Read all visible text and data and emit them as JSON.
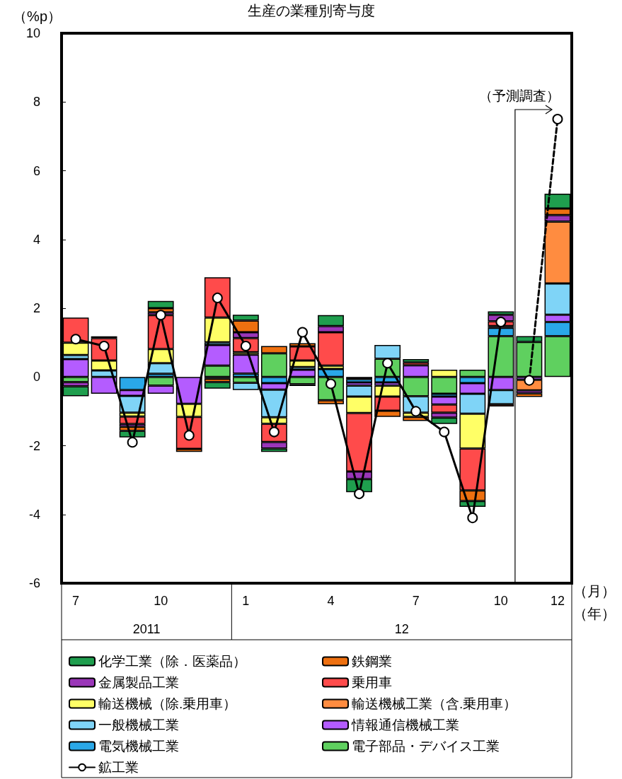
{
  "chart_data": {
    "type": "bar",
    "title": "生産の業種別寄与度",
    "xlabel": "（月）",
    "ylabel": "（%p）",
    "annotations": [
      "（予測調査）",
      "（年）",
      "2011",
      "12"
    ],
    "categories": [
      "7",
      null,
      null,
      "10",
      null,
      null,
      "1",
      null,
      null,
      "4",
      null,
      null,
      "7",
      null,
      null,
      "10",
      null,
      "12"
    ],
    "stacked": true,
    "ylim": [
      -6,
      10
    ],
    "yticks": [
      -6,
      -4,
      -2,
      0,
      2,
      4,
      6,
      8,
      10
    ],
    "legend": "bottom",
    "marker": "circle",
    "series": [
      {
        "name": "電子部品・デバイス工業",
        "color": "#5fd05f",
        "values": [
          -0.15,
          null,
          null,
          -0.25,
          null,
          0.33,
          -0.17,
          0.69,
          -0.21,
          -0.68,
          -0.06,
          0.53,
          -0.56,
          -0.49,
          0.21,
          1.19,
          1.02,
          1.19
        ]
      },
      {
        "name": "電気機械工業",
        "color": "#2aa8e8",
        "values": [
          null,
          null,
          -0.38,
          0.09,
          null,
          -0.05,
          0.1,
          -0.18,
          null,
          0.23,
          -0.1,
          -0.16,
          null,
          -0.08,
          -0.18,
          0.24,
          null,
          0.41
        ]
      },
      {
        "name": "情報通信機械工業",
        "color": "#b45cff",
        "values": [
          0.52,
          -0.49,
          -0.17,
          -0.24,
          -0.78,
          0.6,
          0.55,
          -0.19,
          0.21,
          null,
          -0.09,
          -0.09,
          0.34,
          -0.23,
          -0.31,
          -0.38,
          -0.08,
          0.21
        ]
      },
      {
        "name": "一般機械工業",
        "color": "#7fd4f7",
        "values": [
          0.12,
          0.19,
          -0.49,
          0.31,
          null,
          0.08,
          -0.21,
          -0.8,
          0.08,
          null,
          -0.32,
          0.4,
          -0.48,
          null,
          -0.58,
          -0.41,
          null,
          0.91
        ]
      },
      {
        "name": "輸送機械工業（含.乗用車）",
        "color": "#ff8c40",
        "values": [
          null,
          null,
          null,
          null,
          null,
          null,
          null,
          null,
          null,
          null,
          null,
          null,
          null,
          null,
          null,
          null,
          -0.31,
          1.8
        ]
      },
      {
        "name": "輸送機械（除.乗用車）",
        "color": "#ffff66",
        "values": [
          0.36,
          0.29,
          -0.11,
          0.41,
          -0.38,
          0.72,
          0.07,
          -0.19,
          0.19,
          0.1,
          -0.48,
          -0.32,
          -0.12,
          0.21,
          -1.01,
          0.05,
          null,
          null
        ]
      },
      {
        "name": "乗用車",
        "color": "#ff4b4b",
        "values": [
          0.73,
          0.65,
          -0.22,
          0.99,
          -0.93,
          1.17,
          0.41,
          -0.53,
          0.41,
          0.97,
          -1.7,
          -0.41,
          0.08,
          -0.24,
          -1.22,
          0.14,
          null,
          null
        ]
      },
      {
        "name": "金属製品工業",
        "color": "#9a36b8",
        "values": [
          -0.12,
          null,
          -0.08,
          0.08,
          null,
          null,
          0.17,
          -0.19,
          null,
          0.18,
          -0.22,
          null,
          null,
          -0.14,
          null,
          0.19,
          -0.09,
          0.19
        ]
      },
      {
        "name": "鉄鋼業",
        "color": "#ee7010",
        "values": [
          null,
          0.05,
          -0.12,
          0.12,
          -0.09,
          -0.1,
          0.34,
          0.21,
          0.09,
          -0.11,
          null,
          -0.18,
          -0.12,
          null,
          -0.31,
          -0.07,
          -0.1,
          0.19
        ]
      },
      {
        "name": "化学工業（除．医薬品）",
        "color": "#1f9e4e",
        "values": [
          -0.29,
          null,
          -0.19,
          0.21,
          null,
          -0.19,
          0.17,
          -0.1,
          -0.05,
          0.32,
          -0.38,
          null,
          0.1,
          -0.19,
          -0.17,
          0.1,
          0.17,
          0.43
        ]
      },
      {
        "name": "鉱工業",
        "type": "line",
        "color": "#000000",
        "line_style": "solid",
        "values": [
          1.1,
          0.9,
          -1.9,
          1.8,
          -1.7,
          2.3,
          0.9,
          -1.6,
          1.3,
          -0.2,
          -3.4,
          0.4,
          -1.0,
          -1.6,
          -4.1,
          1.6,
          null,
          null
        ]
      },
      {
        "type": "line",
        "color": "#000000",
        "line_style": "dashed",
        "values": [
          null,
          null,
          null,
          null,
          null,
          null,
          null,
          null,
          null,
          null,
          null,
          null,
          null,
          null,
          null,
          null,
          -0.1,
          7.5
        ]
      }
    ]
  }
}
